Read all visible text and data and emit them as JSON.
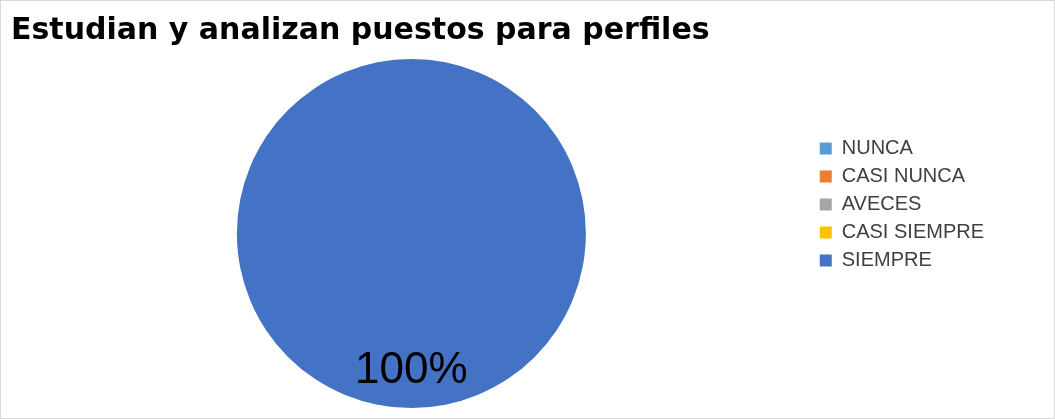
{
  "chart_data": {
    "type": "pie",
    "title": "Estudian y analizan puestos para perfiles",
    "categories": [
      "NUNCA",
      "CASI NUNCA",
      "AVECES",
      "CASI SIEMPRE",
      "SIEMPRE"
    ],
    "values": [
      0,
      0,
      0,
      0,
      100
    ],
    "colors": [
      "#5b9bd5",
      "#ed7d31",
      "#a5a5a5",
      "#ffc000",
      "#4472c4"
    ],
    "value_labels": [
      null,
      null,
      null,
      null,
      "100%"
    ],
    "legend": "right"
  }
}
